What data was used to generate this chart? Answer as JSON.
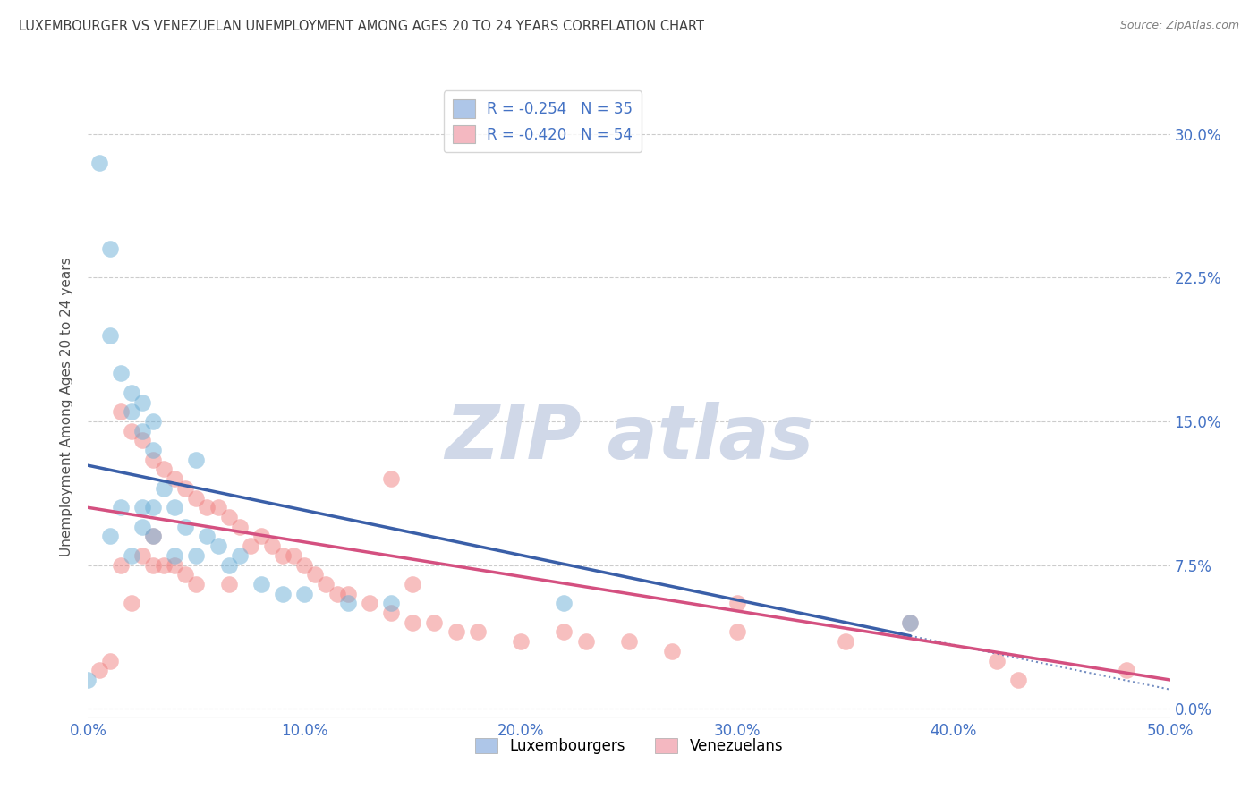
{
  "title": "LUXEMBOURGER VS VENEZUELAN UNEMPLOYMENT AMONG AGES 20 TO 24 YEARS CORRELATION CHART",
  "source": "Source: ZipAtlas.com",
  "ylabel": "Unemployment Among Ages 20 to 24 years",
  "xlim": [
    0.0,
    0.5
  ],
  "ylim": [
    -0.005,
    0.32
  ],
  "x_ticks": [
    0.0,
    0.1,
    0.2,
    0.3,
    0.4,
    0.5
  ],
  "x_tick_labels": [
    "0.0%",
    "10.0%",
    "20.0%",
    "30.0%",
    "40.0%",
    "50.0%"
  ],
  "y_ticks": [
    0.0,
    0.075,
    0.15,
    0.225,
    0.3
  ],
  "y_tick_labels": [
    "0.0%",
    "7.5%",
    "15.0%",
    "22.5%",
    "30.0%"
  ],
  "lux_color": "#6aaed6",
  "ven_color": "#f08080",
  "lux_legend_color": "#aec6e8",
  "ven_legend_color": "#f4b8c1",
  "trend_lux_color": "#3a5fa8",
  "trend_ven_color": "#d45080",
  "watermark_color": "#d0d8e8",
  "background_color": "#ffffff",
  "grid_color": "#cccccc",
  "title_color": "#404040",
  "axis_label_color": "#505050",
  "tick_label_color": "#4472c4",
  "source_color": "#808080",
  "lux_scatter_x": [
    0.005,
    0.01,
    0.01,
    0.01,
    0.015,
    0.015,
    0.02,
    0.02,
    0.02,
    0.025,
    0.025,
    0.025,
    0.025,
    0.03,
    0.03,
    0.03,
    0.03,
    0.035,
    0.04,
    0.04,
    0.045,
    0.05,
    0.05,
    0.055,
    0.06,
    0.065,
    0.07,
    0.08,
    0.09,
    0.1,
    0.12,
    0.14,
    0.22,
    0.38,
    0.0
  ],
  "lux_scatter_y": [
    0.285,
    0.24,
    0.195,
    0.09,
    0.175,
    0.105,
    0.165,
    0.155,
    0.08,
    0.16,
    0.145,
    0.105,
    0.095,
    0.15,
    0.135,
    0.105,
    0.09,
    0.115,
    0.105,
    0.08,
    0.095,
    0.13,
    0.08,
    0.09,
    0.085,
    0.075,
    0.08,
    0.065,
    0.06,
    0.06,
    0.055,
    0.055,
    0.055,
    0.045,
    0.015
  ],
  "ven_scatter_x": [
    0.005,
    0.01,
    0.015,
    0.015,
    0.02,
    0.02,
    0.025,
    0.025,
    0.03,
    0.03,
    0.03,
    0.035,
    0.035,
    0.04,
    0.04,
    0.045,
    0.045,
    0.05,
    0.05,
    0.055,
    0.06,
    0.065,
    0.065,
    0.07,
    0.075,
    0.08,
    0.085,
    0.09,
    0.095,
    0.1,
    0.105,
    0.11,
    0.115,
    0.12,
    0.13,
    0.14,
    0.14,
    0.15,
    0.15,
    0.16,
    0.17,
    0.18,
    0.2,
    0.22,
    0.23,
    0.25,
    0.27,
    0.3,
    0.3,
    0.35,
    0.38,
    0.42,
    0.43,
    0.48
  ],
  "ven_scatter_y": [
    0.02,
    0.025,
    0.155,
    0.075,
    0.145,
    0.055,
    0.14,
    0.08,
    0.13,
    0.09,
    0.075,
    0.125,
    0.075,
    0.12,
    0.075,
    0.115,
    0.07,
    0.11,
    0.065,
    0.105,
    0.105,
    0.1,
    0.065,
    0.095,
    0.085,
    0.09,
    0.085,
    0.08,
    0.08,
    0.075,
    0.07,
    0.065,
    0.06,
    0.06,
    0.055,
    0.05,
    0.12,
    0.045,
    0.065,
    0.045,
    0.04,
    0.04,
    0.035,
    0.04,
    0.035,
    0.035,
    0.03,
    0.04,
    0.055,
    0.035,
    0.045,
    0.025,
    0.015,
    0.02
  ],
  "lux_trend_x0": 0.0,
  "lux_trend_y0": 0.127,
  "lux_trend_x1": 0.38,
  "lux_trend_y1": 0.038,
  "lux_trend_dashed_x1": 0.5,
  "lux_trend_dashed_y1": 0.01,
  "ven_trend_x0": 0.0,
  "ven_trend_y0": 0.105,
  "ven_trend_x1": 0.5,
  "ven_trend_y1": 0.015
}
